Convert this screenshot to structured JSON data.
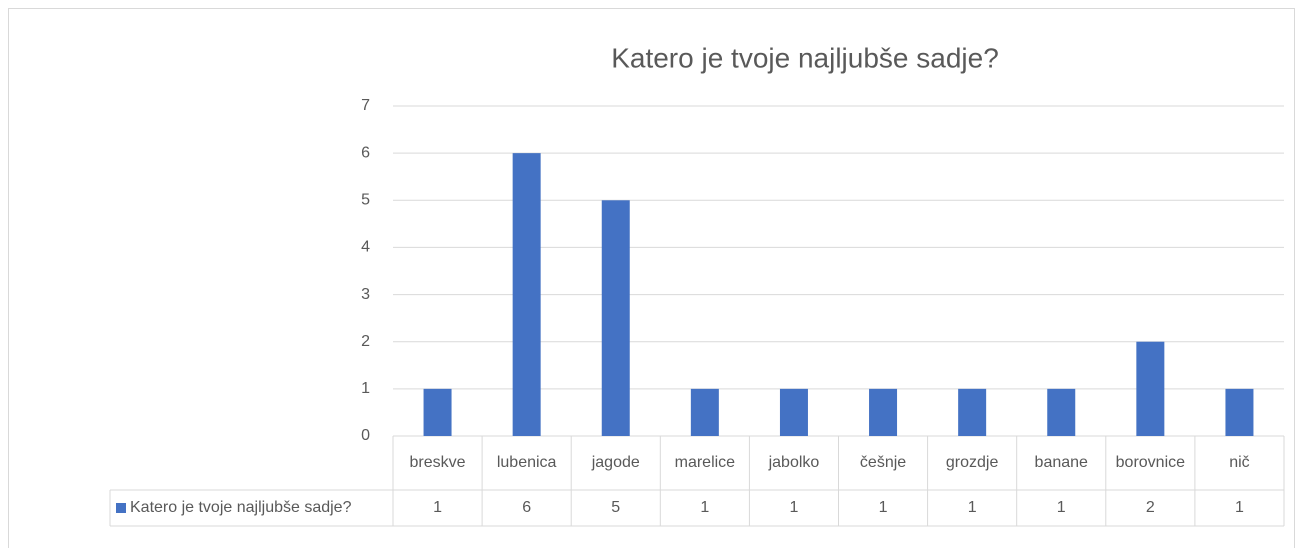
{
  "chart_data": {
    "type": "bar",
    "title": "Katero je tvoje najljubše  sadje?",
    "categories": [
      "breskve",
      "lubenica",
      "jagode",
      "marelice",
      "jabolko",
      "češnje",
      "grozdje",
      "banane",
      "borovnice",
      "nič"
    ],
    "series": [
      {
        "name": "Katero je tvoje najljubše sadje?",
        "color": "#4472c4",
        "values": [
          1,
          6,
          5,
          1,
          1,
          1,
          1,
          1,
          2,
          1
        ]
      }
    ],
    "ylim": [
      0,
      7
    ],
    "yticks": [
      0,
      1,
      2,
      3,
      4,
      5,
      6,
      7
    ],
    "grid": true
  }
}
